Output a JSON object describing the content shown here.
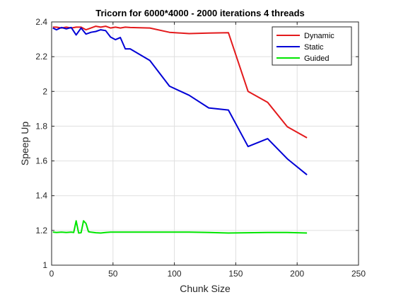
{
  "chart_data": {
    "type": "line",
    "title": "Tricorn for 6000*4000 - 2000 iterations 4 threads",
    "xlabel": "Chunk Size",
    "ylabel": "Speep Up",
    "xlim": [
      0,
      250
    ],
    "ylim": [
      1,
      2.4
    ],
    "x_ticks": [
      0,
      50,
      100,
      150,
      200,
      250
    ],
    "y_ticks": [
      1,
      1.2,
      1.4,
      1.6,
      1.8,
      2,
      2.2,
      2.4
    ],
    "grid": true,
    "legend_position": "top-right",
    "series": [
      {
        "name": "Dynamic",
        "color": "#e31a1c",
        "x": [
          1,
          4,
          8,
          12,
          16,
          20,
          24,
          28,
          32,
          36,
          40,
          44,
          48,
          52,
          56,
          60,
          64,
          80,
          96,
          112,
          128,
          144,
          160,
          176,
          192,
          208
        ],
        "y": [
          2.37,
          2.37,
          2.365,
          2.37,
          2.365,
          2.37,
          2.37,
          2.355,
          2.365,
          2.375,
          2.37,
          2.375,
          2.365,
          2.37,
          2.365,
          2.37,
          2.368,
          2.365,
          2.34,
          2.333,
          2.336,
          2.338,
          2.0,
          1.937,
          1.797,
          1.733
        ]
      },
      {
        "name": "Static",
        "color": "#0000d6",
        "x": [
          1,
          4,
          8,
          12,
          16,
          20,
          24,
          28,
          32,
          36,
          40,
          44,
          48,
          52,
          56,
          60,
          64,
          80,
          96,
          112,
          128,
          144,
          160,
          176,
          192,
          208
        ],
        "y": [
          2.365,
          2.355,
          2.368,
          2.36,
          2.368,
          2.325,
          2.365,
          2.33,
          2.34,
          2.345,
          2.355,
          2.35,
          2.313,
          2.298,
          2.31,
          2.245,
          2.245,
          2.178,
          2.03,
          1.978,
          1.905,
          1.893,
          1.683,
          1.728,
          1.612,
          1.52
        ]
      },
      {
        "name": "Guided",
        "color": "#00e600",
        "x": [
          1,
          4,
          8,
          12,
          16,
          18,
          20,
          22,
          24,
          26,
          28,
          30,
          32,
          36,
          40,
          44,
          48,
          52,
          56,
          60,
          64,
          80,
          96,
          112,
          128,
          144,
          160,
          176,
          192,
          208
        ],
        "y": [
          1.19,
          1.188,
          1.19,
          1.188,
          1.19,
          1.188,
          1.255,
          1.185,
          1.187,
          1.255,
          1.24,
          1.193,
          1.19,
          1.187,
          1.185,
          1.188,
          1.19,
          1.19,
          1.19,
          1.19,
          1.19,
          1.19,
          1.19,
          1.19,
          1.188,
          1.185,
          1.187,
          1.188,
          1.188,
          1.185
        ]
      }
    ]
  }
}
